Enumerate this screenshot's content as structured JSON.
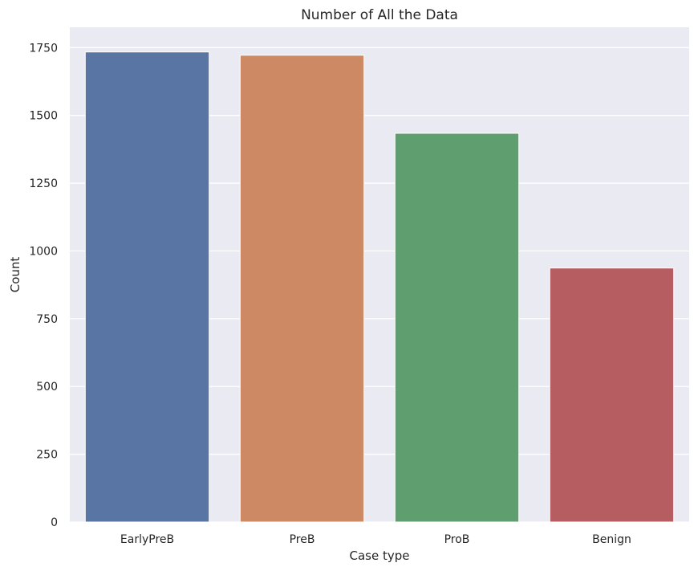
{
  "chart_data": {
    "type": "bar",
    "title": "Number of All the Data",
    "xlabel": "Case type",
    "ylabel": "Count",
    "categories": [
      "EarlyPreB",
      "PreB",
      "ProB",
      "Benign"
    ],
    "values": [
      1734,
      1722,
      1434,
      937
    ],
    "colors": [
      "#5875a4",
      "#cc8963",
      "#5f9e6e",
      "#b55d60"
    ],
    "ylim": [
      0,
      1825
    ],
    "yticks": [
      0,
      250,
      500,
      750,
      1000,
      1250,
      1500,
      1750
    ],
    "ytick_labels": [
      "0",
      "250",
      "500",
      "750",
      "1000",
      "1250",
      "1500",
      "1750"
    ],
    "grid": true,
    "background_color": "#eaeaf2",
    "grid_color": "#ffffff"
  }
}
